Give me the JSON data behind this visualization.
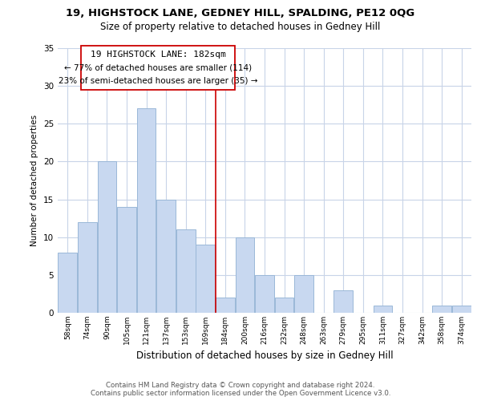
{
  "title": "19, HIGHSTOCK LANE, GEDNEY HILL, SPALDING, PE12 0QG",
  "subtitle": "Size of property relative to detached houses in Gedney Hill",
  "xlabel": "Distribution of detached houses by size in Gedney Hill",
  "ylabel": "Number of detached properties",
  "categories": [
    "58sqm",
    "74sqm",
    "90sqm",
    "105sqm",
    "121sqm",
    "137sqm",
    "153sqm",
    "169sqm",
    "184sqm",
    "200sqm",
    "216sqm",
    "232sqm",
    "248sqm",
    "263sqm",
    "279sqm",
    "295sqm",
    "311sqm",
    "327sqm",
    "342sqm",
    "358sqm",
    "374sqm"
  ],
  "values": [
    8,
    12,
    20,
    14,
    27,
    15,
    11,
    9,
    2,
    10,
    5,
    2,
    5,
    0,
    3,
    0,
    1,
    0,
    0,
    1,
    1
  ],
  "bar_color": "#c8d8f0",
  "bar_edge_color": "#9ab8d8",
  "vline_x_index": 8,
  "vline_color": "#cc0000",
  "annotation_title": "19 HIGHSTOCK LANE: 182sqm",
  "annotation_line1": "← 77% of detached houses are smaller (114)",
  "annotation_line2": "23% of semi-detached houses are larger (35) →",
  "ylim": [
    0,
    35
  ],
  "yticks": [
    0,
    5,
    10,
    15,
    20,
    25,
    30,
    35
  ],
  "footer_line1": "Contains HM Land Registry data © Crown copyright and database right 2024.",
  "footer_line2": "Contains public sector information licensed under the Open Government Licence v3.0.",
  "background_color": "#ffffff",
  "grid_color": "#c8d4e8"
}
